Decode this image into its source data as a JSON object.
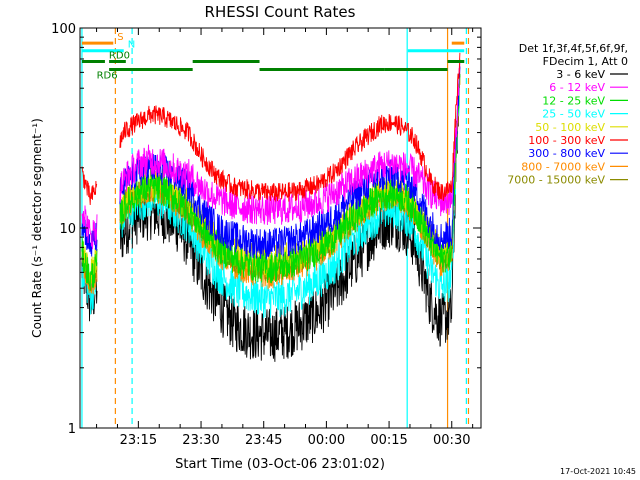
{
  "chart_data": {
    "type": "line",
    "title": "RHESSI Count Rates",
    "xlabel": "Start Time (03-Oct-06 23:01:02)",
    "ylabel": "Count Rate (s⁻¹ detector segment⁻¹)",
    "yscale": "log",
    "xlim": [
      "23:01:02",
      "00:37:00"
    ],
    "ylim": [
      1,
      100
    ],
    "x_ticks": [
      "23:15",
      "23:30",
      "23:45",
      "00:00",
      "00:15",
      "00:30"
    ],
    "y_ticks": [
      "1",
      "10",
      "100"
    ],
    "legend_header": [
      "Det 1f,3f,4f,5f,6f,9f,",
      "FDecim 1, Att 0"
    ],
    "legend_placement": "right",
    "timestamp": "17-Oct-2021 10:45",
    "series": [
      {
        "name": "3 - 6 keV",
        "color": "#000000",
        "noise": 0.14,
        "x": [
          "23:01:30",
          "23:03:30",
          "23:05:00",
          "23:12:00",
          "23:15:00",
          "23:18:00",
          "23:21:00",
          "23:24:00",
          "23:27:00",
          "23:30:00",
          "23:34:00",
          "23:38:00",
          "23:42:00",
          "23:46:00",
          "23:50:00",
          "23:54:00",
          "23:58:00",
          "00:02:00",
          "00:06:00",
          "00:10:00",
          "00:13:00",
          "00:16:00",
          "00:19:00",
          "00:21:00",
          "00:23:00",
          "00:25:00",
          "00:27:30",
          "00:30:00",
          "00:31:00",
          "00:32:00"
        ],
        "values": [
          6.5,
          4.2,
          5.0,
          10.0,
          11.5,
          12.0,
          11.5,
          10.5,
          8.5,
          6.0,
          4.2,
          3.3,
          3.0,
          2.9,
          3.0,
          3.3,
          3.8,
          4.8,
          6.5,
          8.5,
          10.5,
          11.0,
          10.0,
          8.5,
          6.0,
          4.2,
          3.4,
          3.8,
          22,
          65
        ]
      },
      {
        "name": "6 - 12 keV",
        "color": "#ff00ff",
        "noise": 0.08,
        "x": [
          "23:01:30",
          "23:03:30",
          "23:05:00",
          "23:12:00",
          "23:15:00",
          "23:18:00",
          "23:21:00",
          "23:24:00",
          "23:27:00",
          "23:30:00",
          "23:34:00",
          "23:38:00",
          "23:42:00",
          "23:46:00",
          "23:50:00",
          "23:54:00",
          "23:58:00",
          "00:02:00",
          "00:06:00",
          "00:10:00",
          "00:13:00",
          "00:16:00",
          "00:19:00",
          "00:21:00",
          "00:23:00",
          "00:25:00",
          "00:27:30",
          "00:30:00",
          "00:31:00",
          "00:32:00"
        ],
        "values": [
          13,
          9,
          10,
          18,
          21,
          22,
          21,
          19.5,
          18.5,
          16,
          14,
          13,
          12.5,
          12.3,
          12.4,
          12.8,
          13.5,
          15,
          17,
          19,
          20.5,
          21,
          20,
          19,
          17,
          15,
          13.5,
          14,
          30,
          70
        ]
      },
      {
        "name": "12 - 25 keV",
        "color": "#00dd00",
        "noise": 0.08,
        "x": [
          "23:01:30",
          "23:03:30",
          "23:05:00",
          "23:12:00",
          "23:15:00",
          "23:18:00",
          "23:21:00",
          "23:24:00",
          "23:27:00",
          "23:30:00",
          "23:34:00",
          "23:38:00",
          "23:42:00",
          "23:46:00",
          "23:50:00",
          "23:54:00",
          "23:58:00",
          "00:02:00",
          "00:06:00",
          "00:10:00",
          "00:13:00",
          "00:16:00",
          "00:19:00",
          "00:21:00",
          "00:23:00",
          "00:25:00",
          "00:27:30",
          "00:30:00",
          "00:31:00",
          "00:32:00"
        ],
        "values": [
          7.5,
          5.5,
          6.5,
          13,
          15,
          16,
          15.5,
          14,
          12.5,
          10,
          8,
          7,
          6.5,
          6.3,
          6.5,
          7,
          7.8,
          9,
          11,
          13,
          14.5,
          15,
          14,
          12.5,
          10.5,
          8.5,
          7,
          7.5,
          25,
          65
        ]
      },
      {
        "name": "25 - 50 keV",
        "color": "#00ffff",
        "noise": 0.1,
        "x": [
          "23:01:30",
          "23:03:30",
          "23:05:00",
          "23:12:00",
          "23:15:00",
          "23:18:00",
          "23:21:00",
          "23:24:00",
          "23:27:00",
          "23:30:00",
          "23:34:00",
          "23:38:00",
          "23:42:00",
          "23:46:00",
          "23:50:00",
          "23:54:00",
          "23:58:00",
          "00:02:00",
          "00:06:00",
          "00:10:00",
          "00:13:00",
          "00:16:00",
          "00:19:00",
          "00:21:00",
          "00:23:00",
          "00:25:00",
          "00:27:30",
          "00:30:00",
          "00:31:00",
          "00:32:00"
        ],
        "values": [
          6.5,
          4.5,
          5.5,
          12,
          13.5,
          14,
          13.5,
          12,
          10.5,
          8,
          6,
          5,
          4.6,
          4.4,
          4.5,
          4.9,
          5.5,
          6.5,
          8.5,
          10.5,
          12,
          12.5,
          11.5,
          10,
          8,
          6.2,
          5,
          5.5,
          22,
          60
        ]
      },
      {
        "name": "50 - 100 keV",
        "color": "#dddd00",
        "noise": 0.08,
        "x": [
          "23:01:30",
          "23:03:30",
          "23:05:00",
          "23:12:00",
          "23:15:00",
          "23:18:00",
          "23:21:00",
          "23:24:00",
          "23:27:00",
          "23:30:00",
          "23:34:00",
          "23:38:00",
          "23:42:00",
          "23:46:00",
          "23:50:00",
          "23:54:00",
          "23:58:00",
          "00:02:00",
          "00:06:00",
          "00:10:00",
          "00:13:00",
          "00:16:00",
          "00:19:00",
          "00:21:00",
          "00:23:00",
          "00:25:00",
          "00:27:30",
          "00:30:00",
          "00:31:00",
          "00:32:00"
        ],
        "values": [
          8,
          6,
          7,
          14,
          16,
          17,
          16.5,
          15,
          13,
          10.5,
          8.5,
          7.5,
          7,
          6.8,
          7,
          7.5,
          8.3,
          9.5,
          11.5,
          13.5,
          15,
          15.5,
          14.5,
          13,
          11,
          9,
          7.5,
          8,
          26,
          66
        ]
      },
      {
        "name": "100 - 300 keV",
        "color": "#ff0000",
        "noise": 0.05,
        "x": [
          "23:01:30",
          "23:03:30",
          "23:05:00",
          "23:12:00",
          "23:15:00",
          "23:18:00",
          "23:21:00",
          "23:24:00",
          "23:27:00",
          "23:30:00",
          "23:34:00",
          "23:38:00",
          "23:42:00",
          "23:46:00",
          "23:50:00",
          "23:54:00",
          "23:58:00",
          "00:02:00",
          "00:06:00",
          "00:10:00",
          "00:13:00",
          "00:16:00",
          "00:19:00",
          "00:21:00",
          "00:23:00",
          "00:25:00",
          "00:27:30",
          "00:30:00",
          "00:31:00",
          "00:32:00"
        ],
        "values": [
          19,
          14,
          16,
          31,
          34,
          37,
          36,
          33,
          30,
          23,
          18,
          16,
          15.5,
          15,
          15,
          15.5,
          16.5,
          19,
          24,
          29,
          33,
          34,
          31,
          28,
          22,
          17,
          15,
          16,
          40,
          75
        ]
      },
      {
        "name": "300 - 800 keV",
        "color": "#0000ff",
        "noise": 0.08,
        "x": [
          "23:01:30",
          "23:03:30",
          "23:05:00",
          "23:12:00",
          "23:15:00",
          "23:18:00",
          "23:21:00",
          "23:24:00",
          "23:27:00",
          "23:30:00",
          "23:34:00",
          "23:38:00",
          "23:42:00",
          "23:46:00",
          "23:50:00",
          "23:54:00",
          "23:58:00",
          "00:02:00",
          "00:06:00",
          "00:10:00",
          "00:13:00",
          "00:16:00",
          "00:19:00",
          "00:21:00",
          "00:23:00",
          "00:25:00",
          "00:27:30",
          "00:30:00",
          "00:31:00",
          "00:32:00"
        ],
        "values": [
          11,
          8,
          9,
          17,
          19,
          20,
          19.5,
          18,
          16,
          12.5,
          10,
          9,
          8.5,
          8.3,
          8.5,
          9,
          10,
          11.5,
          14,
          16.5,
          18,
          18.5,
          17.5,
          16,
          13,
          10.5,
          9,
          9.5,
          28,
          68
        ]
      },
      {
        "name": "800 - 7000 keV",
        "color": "#ff8c00",
        "noise": 0.07,
        "x": [
          "23:01:30",
          "23:03:30",
          "23:05:00",
          "23:12:00",
          "23:15:00",
          "23:18:00",
          "23:21:00",
          "23:24:00",
          "23:27:00",
          "23:30:00",
          "23:34:00",
          "23:38:00",
          "23:42:00",
          "23:46:00",
          "23:50:00",
          "23:54:00",
          "23:58:00",
          "00:02:00",
          "00:06:00",
          "00:10:00",
          "00:13:00",
          "00:16:00",
          "00:19:00",
          "00:21:00",
          "00:23:00",
          "00:25:00",
          "00:27:30",
          "00:30:00",
          "00:31:00",
          "00:32:00"
        ],
        "values": [
          7,
          5,
          6,
          13,
          14.5,
          15.5,
          15,
          13.5,
          12,
          9.5,
          7.5,
          6.5,
          6,
          5.8,
          6,
          6.5,
          7.2,
          8.5,
          10.5,
          12.5,
          14,
          14.5,
          13.5,
          12,
          10,
          8,
          6.5,
          7,
          24,
          64
        ]
      },
      {
        "name": "7000 - 15000 keV",
        "color": "#8b8b00",
        "noise": 0.07,
        "x": [
          "23:01:30",
          "23:03:30",
          "23:05:00",
          "23:12:00",
          "23:15:00",
          "23:18:00",
          "23:21:00",
          "23:24:00",
          "23:27:00",
          "23:30:00",
          "23:34:00",
          "23:38:00",
          "23:42:00",
          "23:46:00",
          "23:50:00",
          "23:54:00",
          "23:58:00",
          "00:02:00",
          "00:06:00",
          "00:10:00",
          "00:13:00",
          "00:16:00",
          "00:19:00",
          "00:21:00",
          "00:23:00",
          "00:25:00",
          "00:27:30",
          "00:30:00",
          "00:31:00",
          "00:32:00"
        ],
        "values": [
          7.5,
          5.5,
          6.5,
          13.5,
          15,
          16,
          15.5,
          14,
          12.5,
          10,
          8,
          7,
          6.5,
          6.3,
          6.5,
          7,
          7.8,
          9,
          11,
          13,
          14.5,
          15,
          14,
          12.5,
          10.5,
          8.5,
          7,
          7.5,
          25,
          65
        ]
      }
    ],
    "flags": [
      {
        "label": "S",
        "color": "#ff8c00",
        "y_level": 84,
        "segments": [
          [
            "23:01:30",
            "23:09:00"
          ],
          [
            "00:30:00",
            "00:33:00"
          ]
        ]
      },
      {
        "label": "N",
        "color": "#00ffff",
        "y_level": 77,
        "segments": [
          [
            "23:01:30",
            "23:11:30"
          ],
          [
            "00:19:30",
            "00:33:00"
          ]
        ]
      },
      {
        "label": "RD0",
        "color": "#008000",
        "y_level": 68,
        "segments": [
          [
            "23:01:30",
            "23:07:00"
          ],
          [
            "23:08:00",
            "23:12:00"
          ],
          [
            "23:28:00",
            "23:44:00"
          ],
          [
            "00:29:00",
            "00:33:00"
          ]
        ]
      },
      {
        "label": "RD6",
        "color": "#008000",
        "y_level": 62,
        "segments": [
          [
            "23:08:00",
            "23:28:00"
          ],
          [
            "23:44:00",
            "00:14:00"
          ],
          [
            "00:14:00",
            "00:29:00"
          ]
        ]
      }
    ],
    "vlines": [
      {
        "x": "23:01:30",
        "color": "#00ffff",
        "style": "solid"
      },
      {
        "x": "23:09:30",
        "color": "#ff8c00",
        "style": "dashed"
      },
      {
        "x": "23:13:30",
        "color": "#00ffff",
        "style": "dashed"
      },
      {
        "x": "00:19:20",
        "color": "#00ffff",
        "style": "solid"
      },
      {
        "x": "00:29:00",
        "color": "#ff8c00",
        "style": "solid"
      },
      {
        "x": "00:33:30",
        "color": "#00ffff",
        "style": "dashed"
      },
      {
        "x": "00:34:00",
        "color": "#ff8c00",
        "style": "dashed"
      }
    ]
  }
}
